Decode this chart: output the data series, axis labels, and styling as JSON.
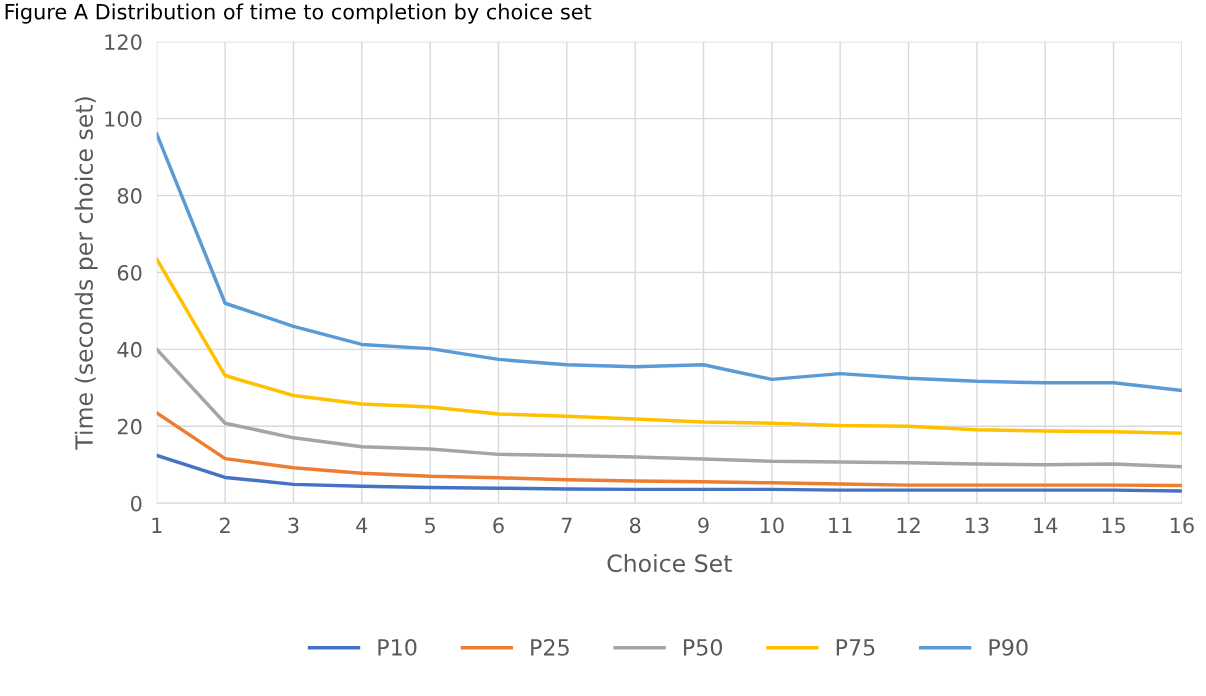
{
  "chart_data": {
    "type": "line",
    "title": "Figure A Distribution of time to completion by choice set",
    "xlabel": "Choice Set",
    "ylabel": "Time (seconds per choice set)",
    "categories": [
      "1",
      "2",
      "3",
      "4",
      "5",
      "6",
      "7",
      "8",
      "9",
      "10",
      "11",
      "12",
      "13",
      "14",
      "15",
      "16"
    ],
    "series": [
      {
        "name": "P10",
        "color": "#4472c4",
        "values": [
          12.4,
          6.7,
          4.9,
          4.4,
          4.1,
          3.9,
          3.7,
          3.6,
          3.6,
          3.6,
          3.4,
          3.4,
          3.4,
          3.4,
          3.4,
          3.2
        ]
      },
      {
        "name": "P25",
        "color": "#ed7d31",
        "values": [
          23.5,
          11.6,
          9.2,
          7.8,
          7.0,
          6.6,
          6.1,
          5.8,
          5.6,
          5.3,
          5.0,
          4.7,
          4.7,
          4.7,
          4.7,
          4.6
        ]
      },
      {
        "name": "P50",
        "color": "#a5a5a5",
        "values": [
          40,
          20.8,
          17,
          14.7,
          14.1,
          12.7,
          12.4,
          12,
          11.5,
          10.9,
          10.7,
          10.5,
          10.2,
          10,
          10.2,
          9.5
        ]
      },
      {
        "name": "P75",
        "color": "#ffc000",
        "values": [
          63.5,
          33.2,
          28,
          25.8,
          25,
          23.2,
          22.6,
          21.9,
          21.1,
          20.8,
          20.2,
          20,
          19.1,
          18.8,
          18.6,
          18.2
        ]
      },
      {
        "name": "P90",
        "color": "#5b9bd5",
        "values": [
          96,
          52,
          46,
          41.3,
          40.2,
          37.4,
          36,
          35.5,
          36,
          32.2,
          33.7,
          32.5,
          31.7,
          31.3,
          31.3,
          29.3
        ]
      }
    ],
    "ylim": [
      0,
      120
    ],
    "yticks": [
      0,
      20,
      40,
      60,
      80,
      100,
      120
    ],
    "grid": true,
    "legend": "bottom",
    "marker": "none",
    "line_style": "solid"
  }
}
